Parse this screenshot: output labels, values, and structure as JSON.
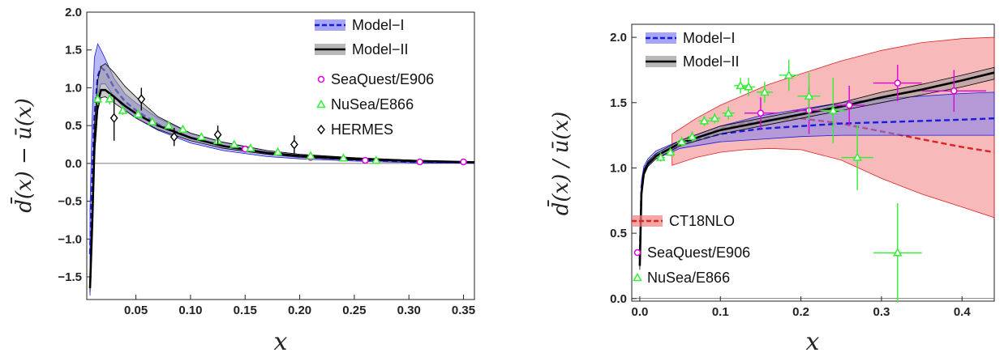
{
  "chart_data": [
    {
      "type": "line",
      "title": "",
      "xlabel": "x",
      "ylabel": "d̄(x) − ū(x)",
      "xlim": [
        0.005,
        0.36
      ],
      "ylim": [
        -1.8,
        2.0
      ],
      "xticks": [
        "0.05",
        "0.10",
        "0.15",
        "0.20",
        "0.25",
        "0.30",
        "0.35"
      ],
      "yticks": [
        "−1.5",
        "−1.0",
        "−0.5",
        "0.0",
        "0.5",
        "1.0",
        "1.5",
        "2.0"
      ],
      "grid": false,
      "legend_position": "top-right",
      "legend": [
        "Model−I",
        "Model−II",
        "SeaQuest/E906",
        "NuSea/E866",
        "HERMES"
      ],
      "series": [
        {
          "name": "Model−I",
          "style": "band-dashed",
          "color": "#1a1adb",
          "band": "#8080ee",
          "x": [
            0.008,
            0.01,
            0.012,
            0.015,
            0.018,
            0.022,
            0.03,
            0.04,
            0.05,
            0.07,
            0.1,
            0.13,
            0.17,
            0.2,
            0.25,
            0.3,
            0.36
          ],
          "y": [
            -1.2,
            -0.2,
            0.6,
            1.15,
            1.27,
            1.22,
            1.0,
            0.82,
            0.7,
            0.52,
            0.34,
            0.23,
            0.13,
            0.09,
            0.05,
            0.025,
            0.01
          ],
          "lo": [
            -1.75,
            -0.6,
            0.3,
            0.9,
            1.05,
            1.05,
            0.88,
            0.72,
            0.6,
            0.44,
            0.27,
            0.17,
            0.09,
            0.06,
            0.03,
            0.01,
            0.0
          ],
          "hi": [
            -0.6,
            0.6,
            1.4,
            1.58,
            1.5,
            1.38,
            1.12,
            0.92,
            0.8,
            0.6,
            0.4,
            0.28,
            0.17,
            0.12,
            0.07,
            0.04,
            0.02
          ]
        },
        {
          "name": "Model−II",
          "style": "band-solid",
          "color": "#000000",
          "band": "#9a9a9a",
          "x": [
            0.008,
            0.01,
            0.012,
            0.015,
            0.018,
            0.022,
            0.03,
            0.04,
            0.05,
            0.07,
            0.1,
            0.13,
            0.17,
            0.2,
            0.25,
            0.3,
            0.36
          ],
          "y": [
            -1.65,
            -0.8,
            0.2,
            0.8,
            0.97,
            0.97,
            0.88,
            0.76,
            0.66,
            0.5,
            0.34,
            0.23,
            0.14,
            0.1,
            0.06,
            0.035,
            0.015
          ],
          "lo": [
            -1.7,
            -0.9,
            0.1,
            0.7,
            0.87,
            0.88,
            0.8,
            0.7,
            0.6,
            0.45,
            0.3,
            0.2,
            0.12,
            0.08,
            0.045,
            0.025,
            0.01
          ],
          "hi": [
            -1.6,
            -0.6,
            0.5,
            1.1,
            1.28,
            1.32,
            1.2,
            1.02,
            0.88,
            0.62,
            0.4,
            0.28,
            0.17,
            0.12,
            0.075,
            0.045,
            0.02
          ]
        },
        {
          "name": "SeaQuest/E906",
          "style": "points",
          "marker": "circle",
          "color": "#dd00dd",
          "x": [
            0.15,
            0.21,
            0.26,
            0.31,
            0.35
          ],
          "y": [
            0.19,
            0.08,
            0.04,
            0.02,
            0.02
          ],
          "err": [
            0.02,
            0.02,
            0.02,
            0.02,
            0.02
          ]
        },
        {
          "name": "NuSea/E866",
          "style": "points",
          "marker": "triangle",
          "color": "#33ee33",
          "x": [
            0.015,
            0.026,
            0.038,
            0.052,
            0.065,
            0.08,
            0.093,
            0.11,
            0.125,
            0.14,
            0.155,
            0.18,
            0.21,
            0.24,
            0.27
          ],
          "y": [
            0.85,
            0.85,
            0.7,
            0.65,
            0.55,
            0.5,
            0.45,
            0.35,
            0.3,
            0.25,
            0.2,
            0.15,
            0.1,
            0.07,
            0.04
          ],
          "err": [
            0.08,
            0.07,
            0.06,
            0.05,
            0.05,
            0.05,
            0.05,
            0.04,
            0.04,
            0.03,
            0.03,
            0.03,
            0.03,
            0.02,
            0.02
          ]
        },
        {
          "name": "HERMES",
          "style": "points",
          "marker": "diamond",
          "color": "#000000",
          "x": [
            0.03,
            0.055,
            0.085,
            0.125,
            0.195
          ],
          "y": [
            0.6,
            0.85,
            0.35,
            0.38,
            0.25
          ],
          "err": [
            0.3,
            0.15,
            0.12,
            0.12,
            0.12
          ]
        }
      ]
    },
    {
      "type": "line",
      "title": "",
      "xlabel": "x",
      "ylabel": "d̄(x) / ū(x)",
      "xlim": [
        -0.01,
        0.44
      ],
      "ylim": [
        -0.02,
        2.1
      ],
      "xticks": [
        "0.0",
        "0.1",
        "0.2",
        "0.3",
        "0.4"
      ],
      "yticks": [
        "0.0",
        "0.5",
        "1.0",
        "1.5",
        "2.0"
      ],
      "grid": false,
      "legend": [
        "Model−I",
        "Model−II",
        "CT18NLO",
        "SeaQuest/E906",
        "NuSea/E866"
      ],
      "series": [
        {
          "name": "CT18NLO",
          "style": "band-dashed",
          "color": "#dd2222",
          "band": "#f08080",
          "x": [
            0.04,
            0.07,
            0.1,
            0.13,
            0.16,
            0.2,
            0.25,
            0.3,
            0.35,
            0.4,
            0.44
          ],
          "y": [
            1.14,
            1.23,
            1.3,
            1.34,
            1.37,
            1.38,
            1.34,
            1.28,
            1.22,
            1.16,
            1.12
          ],
          "lo": [
            1.02,
            1.08,
            1.12,
            1.14,
            1.15,
            1.14,
            1.06,
            0.92,
            0.8,
            0.7,
            0.62
          ],
          "hi": [
            1.26,
            1.38,
            1.48,
            1.56,
            1.64,
            1.72,
            1.82,
            1.9,
            1.96,
            1.99,
            2.0
          ]
        },
        {
          "name": "Model−I",
          "style": "band-dashed",
          "color": "#1a1adb",
          "band": "#8080ee",
          "x": [
            0.0,
            0.002,
            0.005,
            0.01,
            0.02,
            0.05,
            0.1,
            0.15,
            0.2,
            0.25,
            0.3,
            0.35,
            0.4,
            0.44
          ],
          "y": [
            0.3,
            0.85,
            0.98,
            1.04,
            1.1,
            1.18,
            1.26,
            1.3,
            1.32,
            1.34,
            1.35,
            1.36,
            1.37,
            1.38
          ],
          "lo": [
            0.25,
            0.8,
            0.95,
            1.02,
            1.07,
            1.15,
            1.2,
            1.22,
            1.24,
            1.25,
            1.25,
            1.25,
            1.25,
            1.25
          ],
          "hi": [
            0.35,
            0.9,
            1.01,
            1.07,
            1.13,
            1.21,
            1.32,
            1.4,
            1.45,
            1.5,
            1.53,
            1.55,
            1.57,
            1.58
          ]
        },
        {
          "name": "Model−II",
          "style": "band-solid",
          "color": "#000000",
          "band": "#9a9a9a",
          "x": [
            0.0,
            0.002,
            0.005,
            0.01,
            0.02,
            0.05,
            0.1,
            0.15,
            0.2,
            0.25,
            0.3,
            0.35,
            0.4,
            0.44
          ],
          "y": [
            0.25,
            0.8,
            0.96,
            1.03,
            1.09,
            1.19,
            1.29,
            1.35,
            1.41,
            1.47,
            1.54,
            1.6,
            1.67,
            1.73
          ],
          "lo": [
            0.22,
            0.77,
            0.94,
            1.01,
            1.07,
            1.17,
            1.26,
            1.32,
            1.38,
            1.44,
            1.5,
            1.56,
            1.62,
            1.68
          ],
          "hi": [
            0.28,
            0.83,
            0.98,
            1.05,
            1.11,
            1.21,
            1.32,
            1.38,
            1.44,
            1.5,
            1.58,
            1.64,
            1.71,
            1.77
          ]
        },
        {
          "name": "SeaQuest/E906",
          "style": "points",
          "marker": "circle",
          "color": "#dd00dd",
          "x": [
            0.15,
            0.21,
            0.26,
            0.32,
            0.39
          ],
          "y": [
            1.42,
            1.44,
            1.48,
            1.65,
            1.59
          ],
          "err": [
            0.12,
            0.18,
            0.15,
            0.14,
            0.16
          ],
          "xerr": [
            0.02,
            0.02,
            0.02,
            0.03,
            0.04
          ]
        },
        {
          "name": "NuSea/E866",
          "style": "points",
          "marker": "triangle",
          "color": "#33ee33",
          "x": [
            0.026,
            0.038,
            0.052,
            0.065,
            0.08,
            0.093,
            0.11,
            0.125,
            0.135,
            0.155,
            0.185,
            0.21,
            0.24,
            0.27,
            0.32
          ],
          "y": [
            1.08,
            1.12,
            1.2,
            1.24,
            1.36,
            1.38,
            1.42,
            1.63,
            1.62,
            1.58,
            1.71,
            1.55,
            1.44,
            1.08,
            0.35
          ],
          "err": [
            0.03,
            0.03,
            0.04,
            0.04,
            0.04,
            0.04,
            0.05,
            0.06,
            0.07,
            0.08,
            0.12,
            0.18,
            0.25,
            0.25,
            0.38
          ],
          "xerr": [
            0.005,
            0.005,
            0.006,
            0.006,
            0.007,
            0.007,
            0.008,
            0.008,
            0.008,
            0.01,
            0.012,
            0.014,
            0.016,
            0.02,
            0.03
          ]
        }
      ]
    }
  ]
}
